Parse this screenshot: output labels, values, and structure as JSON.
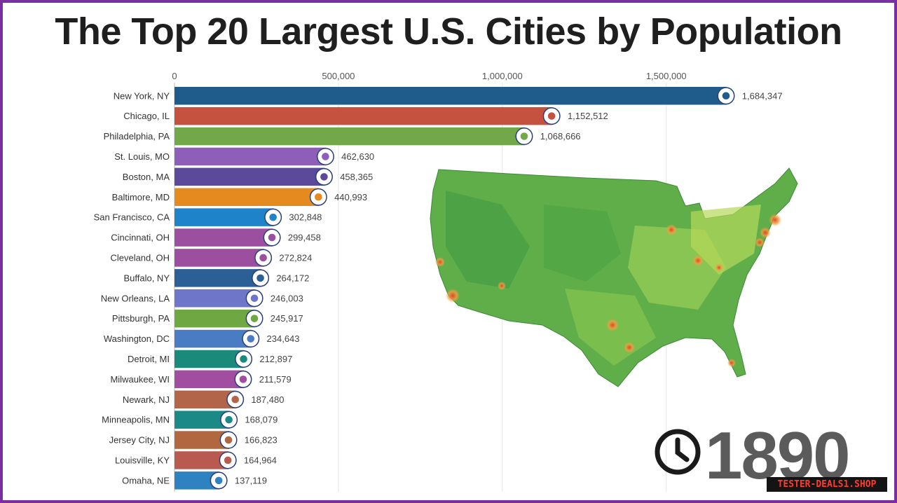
{
  "title": "The Top 20 Largest U.S. Cities by Population",
  "year": "1890",
  "watermark": "TESTER-DEALS1.SHOP",
  "chart_data": {
    "type": "bar",
    "orientation": "horizontal",
    "title": "The Top 20 Largest U.S. Cities by Population",
    "x_ticks": [
      "0",
      "500,000",
      "1,000,000",
      "1,500,000"
    ],
    "x_tick_values": [
      0,
      500000,
      1000000,
      1500000
    ],
    "xlim": [
      0,
      1700000
    ],
    "grid": true,
    "categories": [
      "New York, NY",
      "Chicago, IL",
      "Philadelphia, PA",
      "St. Louis, MO",
      "Boston, MA",
      "Baltimore, MD",
      "San Francisco, CA",
      "Cincinnati, OH",
      "Cleveland, OH",
      "Buffalo, NY",
      "New Orleans, LA",
      "Pittsburgh, PA",
      "Washington, DC",
      "Detroit, MI",
      "Milwaukee, WI",
      "Newark, NJ",
      "Minneapolis, MN",
      "Jersey City, NJ",
      "Louisville, KY",
      "Omaha, NE"
    ],
    "values": [
      1684347,
      1152512,
      1068666,
      462630,
      458365,
      440993,
      302848,
      299458,
      272824,
      264172,
      246003,
      245917,
      234643,
      212897,
      211579,
      187480,
      168079,
      166823,
      164964,
      137119
    ],
    "value_labels": [
      "1,684,347",
      "1,152,512",
      "1,068,666",
      "462,630",
      "458,365",
      "440,993",
      "302,848",
      "299,458",
      "272,824",
      "264,172",
      "246,003",
      "245,917",
      "234,643",
      "212,897",
      "211,579",
      "187,480",
      "168,079",
      "166,823",
      "164,964",
      "137,119"
    ],
    "colors": [
      "#1f5c8b",
      "#c5523f",
      "#73a84a",
      "#8e5fb8",
      "#5b4a9a",
      "#e58a1f",
      "#1f83c9",
      "#9b4f9e",
      "#9b4f9e",
      "#2c5f95",
      "#6d76c8",
      "#6fa843",
      "#4a7cc4",
      "#1b8a7a",
      "#a14da0",
      "#b3654a",
      "#1b8a86",
      "#b16841",
      "#b85a4f",
      "#2f82c0"
    ]
  }
}
